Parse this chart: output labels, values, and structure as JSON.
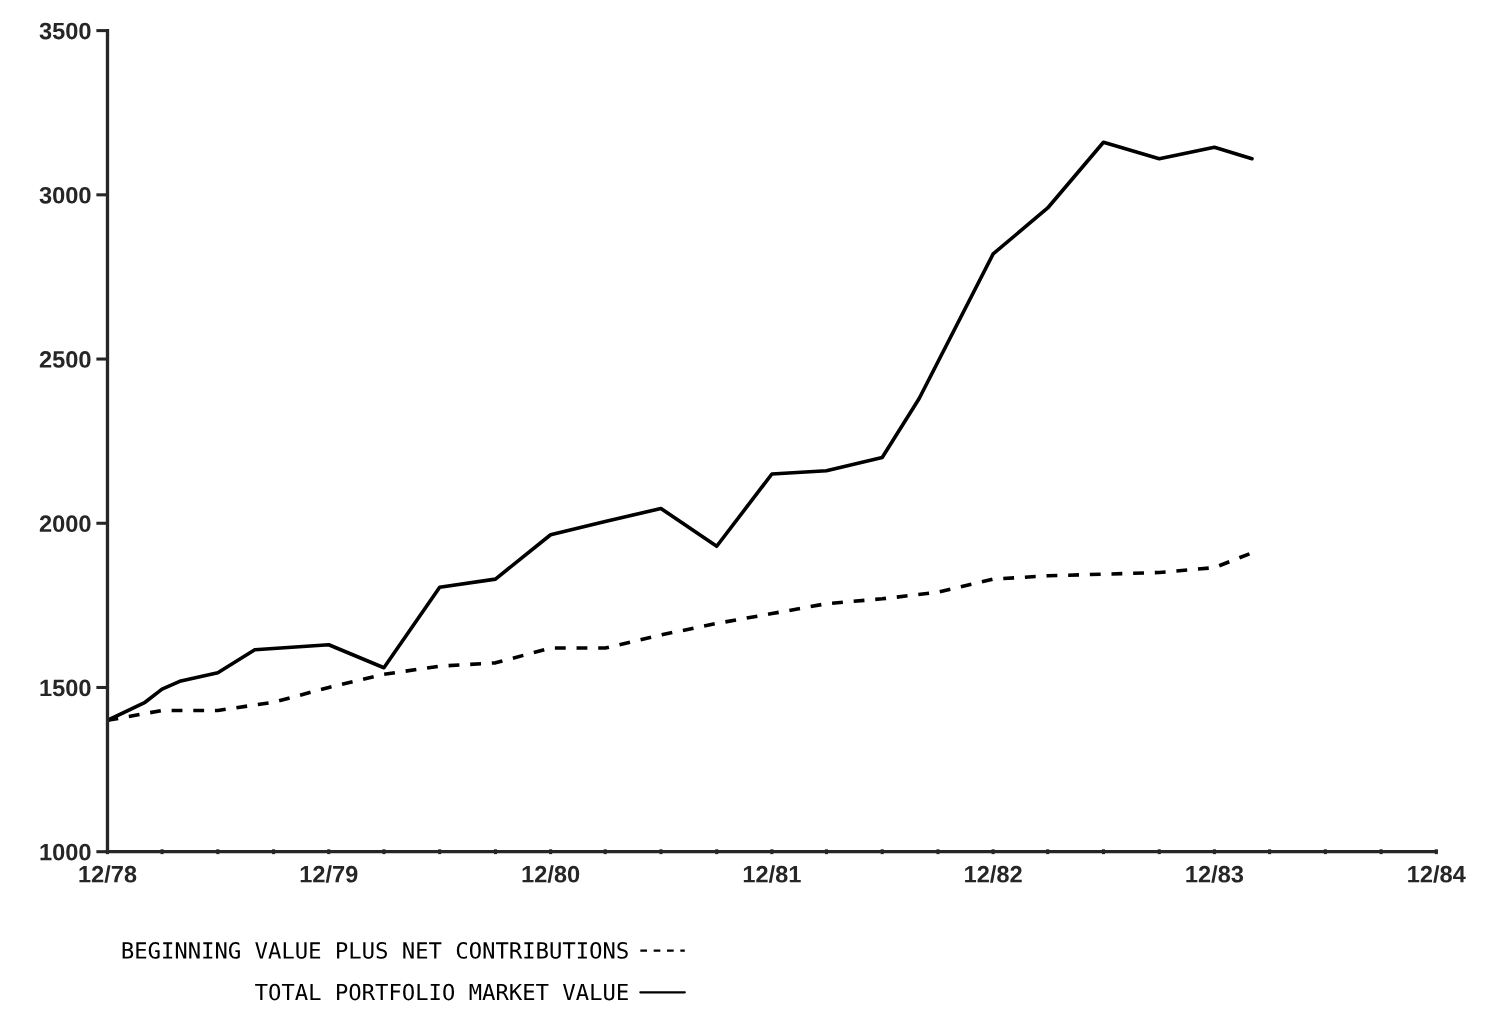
{
  "chart_data": {
    "type": "line",
    "xlim": [
      "1978-12",
      "1984-12"
    ],
    "xticks": [
      {
        "value": "1978-12",
        "label": "12/78"
      },
      {
        "value": "1979-03",
        "label": null
      },
      {
        "value": "1979-06",
        "label": null
      },
      {
        "value": "1979-09",
        "label": null
      },
      {
        "value": "1979-12",
        "label": "12/79"
      },
      {
        "value": "1980-03",
        "label": null
      },
      {
        "value": "1980-06",
        "label": null
      },
      {
        "value": "1980-09",
        "label": null
      },
      {
        "value": "1980-12",
        "label": "12/80"
      },
      {
        "value": "1981-03",
        "label": null
      },
      {
        "value": "1981-06",
        "label": null
      },
      {
        "value": "1981-09",
        "label": null
      },
      {
        "value": "1981-12",
        "label": "12/81"
      },
      {
        "value": "1982-03",
        "label": null
      },
      {
        "value": "1982-06",
        "label": null
      },
      {
        "value": "1982-09",
        "label": null
      },
      {
        "value": "1982-12",
        "label": "12/82"
      },
      {
        "value": "1983-03",
        "label": null
      },
      {
        "value": "1983-06",
        "label": null
      },
      {
        "value": "1983-09",
        "label": null
      },
      {
        "value": "1983-12",
        "label": "12/83"
      },
      {
        "value": "1984-03",
        "label": null
      },
      {
        "value": "1984-06",
        "label": null
      },
      {
        "value": "1984-09",
        "label": null
      },
      {
        "value": "1984-12",
        "label": "12/84"
      }
    ],
    "ylim": [
      1000,
      3500
    ],
    "yticks": [
      1000,
      1500,
      2000,
      2500,
      3000,
      3500
    ],
    "grid": false,
    "marker": "none",
    "legend": "bottom",
    "series": [
      {
        "name": "BEGINNING VALUE PLUS NET CONTRIBUTIONS",
        "color": "#000000",
        "line_style": "dashed",
        "x": [
          "1978-12",
          "1979-03",
          "1979-06",
          "1979-09",
          "1979-12",
          "1980-03",
          "1980-06",
          "1980-09",
          "1980-12",
          "1981-03",
          "1981-06",
          "1981-09",
          "1981-12",
          "1982-03",
          "1982-06",
          "1982-09",
          "1982-12",
          "1983-03",
          "1983-06",
          "1983-09",
          "1983-12",
          "1984-02"
        ],
        "values": [
          1400,
          1430,
          1430,
          1455,
          1500,
          1540,
          1565,
          1575,
          1620,
          1620,
          1660,
          1695,
          1725,
          1755,
          1770,
          1790,
          1830,
          1840,
          1845,
          1850,
          1865,
          1910
        ]
      },
      {
        "name": "TOTAL PORTFOLIO MARKET VALUE",
        "color": "#000000",
        "line_style": "solid",
        "x": [
          "1978-12",
          "1979-02",
          "1979-03",
          "1979-04",
          "1979-06",
          "1979-08",
          "1979-12",
          "1980-03",
          "1980-06",
          "1980-09",
          "1980-12",
          "1981-03",
          "1981-06",
          "1981-09",
          "1981-12",
          "1982-03",
          "1982-06",
          "1982-08",
          "1982-12",
          "1983-03",
          "1983-06",
          "1983-09",
          "1983-12",
          "1984-02"
        ],
        "values": [
          1400,
          1455,
          1495,
          1520,
          1545,
          1615,
          1630,
          1560,
          1805,
          1830,
          1965,
          2005,
          2045,
          1930,
          2150,
          2160,
          2200,
          2380,
          2820,
          2960,
          3160,
          3110,
          3145,
          3110
        ]
      }
    ]
  }
}
